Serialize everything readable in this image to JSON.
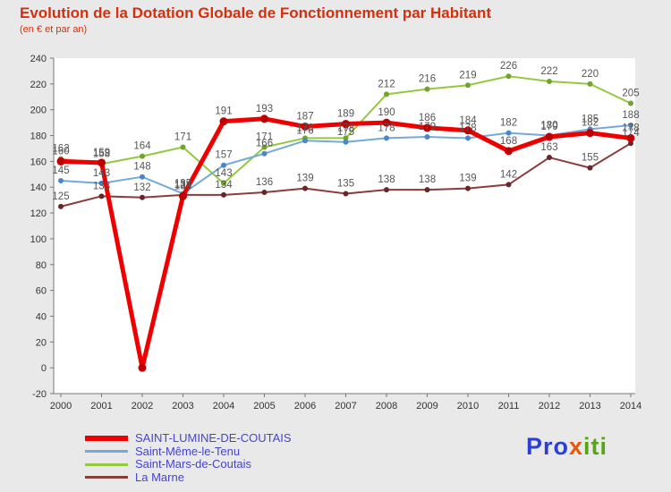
{
  "title": "Evolution de la Dotation Globale de Fonctionnement par Habitant",
  "subtitle": "(en € et par an)",
  "colors": {
    "background": "#e9e9e9",
    "title": "#d2310f",
    "legendText": "#4545cd",
    "axis": "#777777",
    "valueLabel": "#555555",
    "plotBackground": "#ffffff"
  },
  "chart_data": {
    "type": "line",
    "title": "Evolution de la Dotation Globale de Fonctionnement par Habitant",
    "subtitle": "(en € et par an)",
    "categories": [
      "2000",
      "2001",
      "2002",
      "2003",
      "2004",
      "2005",
      "2006",
      "2007",
      "2008",
      "2009",
      "2010",
      "2011",
      "2012",
      "2013",
      "2014"
    ],
    "ylim": [
      -20,
      240
    ],
    "ytick_step": 20,
    "grid": false,
    "legend_position": "bottom-left",
    "series": [
      {
        "name": "SAINT-LUMINE-DE-COUTAIS",
        "color": "#ee0000",
        "marker": "#c00000",
        "width": 5,
        "values": [
          160,
          159,
          0,
          133,
          191,
          193,
          187,
          189,
          190,
          186,
          184,
          168,
          179,
          182,
          178
        ]
      },
      {
        "name": "Saint-Même-le-Tenu",
        "color": "#74a9d8",
        "marker": "#4a86c8",
        "width": 2,
        "values": [
          145,
          143,
          148,
          135,
          157,
          166,
          176,
          175,
          178,
          179,
          178,
          182,
          180,
          185,
          188
        ]
      },
      {
        "name": "Saint-Mars-de-Coutais",
        "color": "#94c83d",
        "marker": "#6fa52a",
        "width": 2,
        "values": [
          162,
          158,
          164,
          171,
          143,
          171,
          178,
          178,
          212,
          216,
          219,
          226,
          222,
          220,
          205
        ]
      },
      {
        "name": "La Marne",
        "color": "#8c3b3b",
        "marker": "#662727",
        "width": 2,
        "values": [
          125,
          133,
          132,
          134,
          134,
          136,
          139,
          135,
          138,
          138,
          139,
          142,
          163,
          155,
          174
        ]
      }
    ]
  },
  "logo": {
    "parts": [
      {
        "text": "Pro",
        "color": "#2b3fd4"
      },
      {
        "text": "x",
        "color": "#e8560d"
      },
      {
        "text": "iti",
        "color": "#55a514"
      }
    ]
  }
}
